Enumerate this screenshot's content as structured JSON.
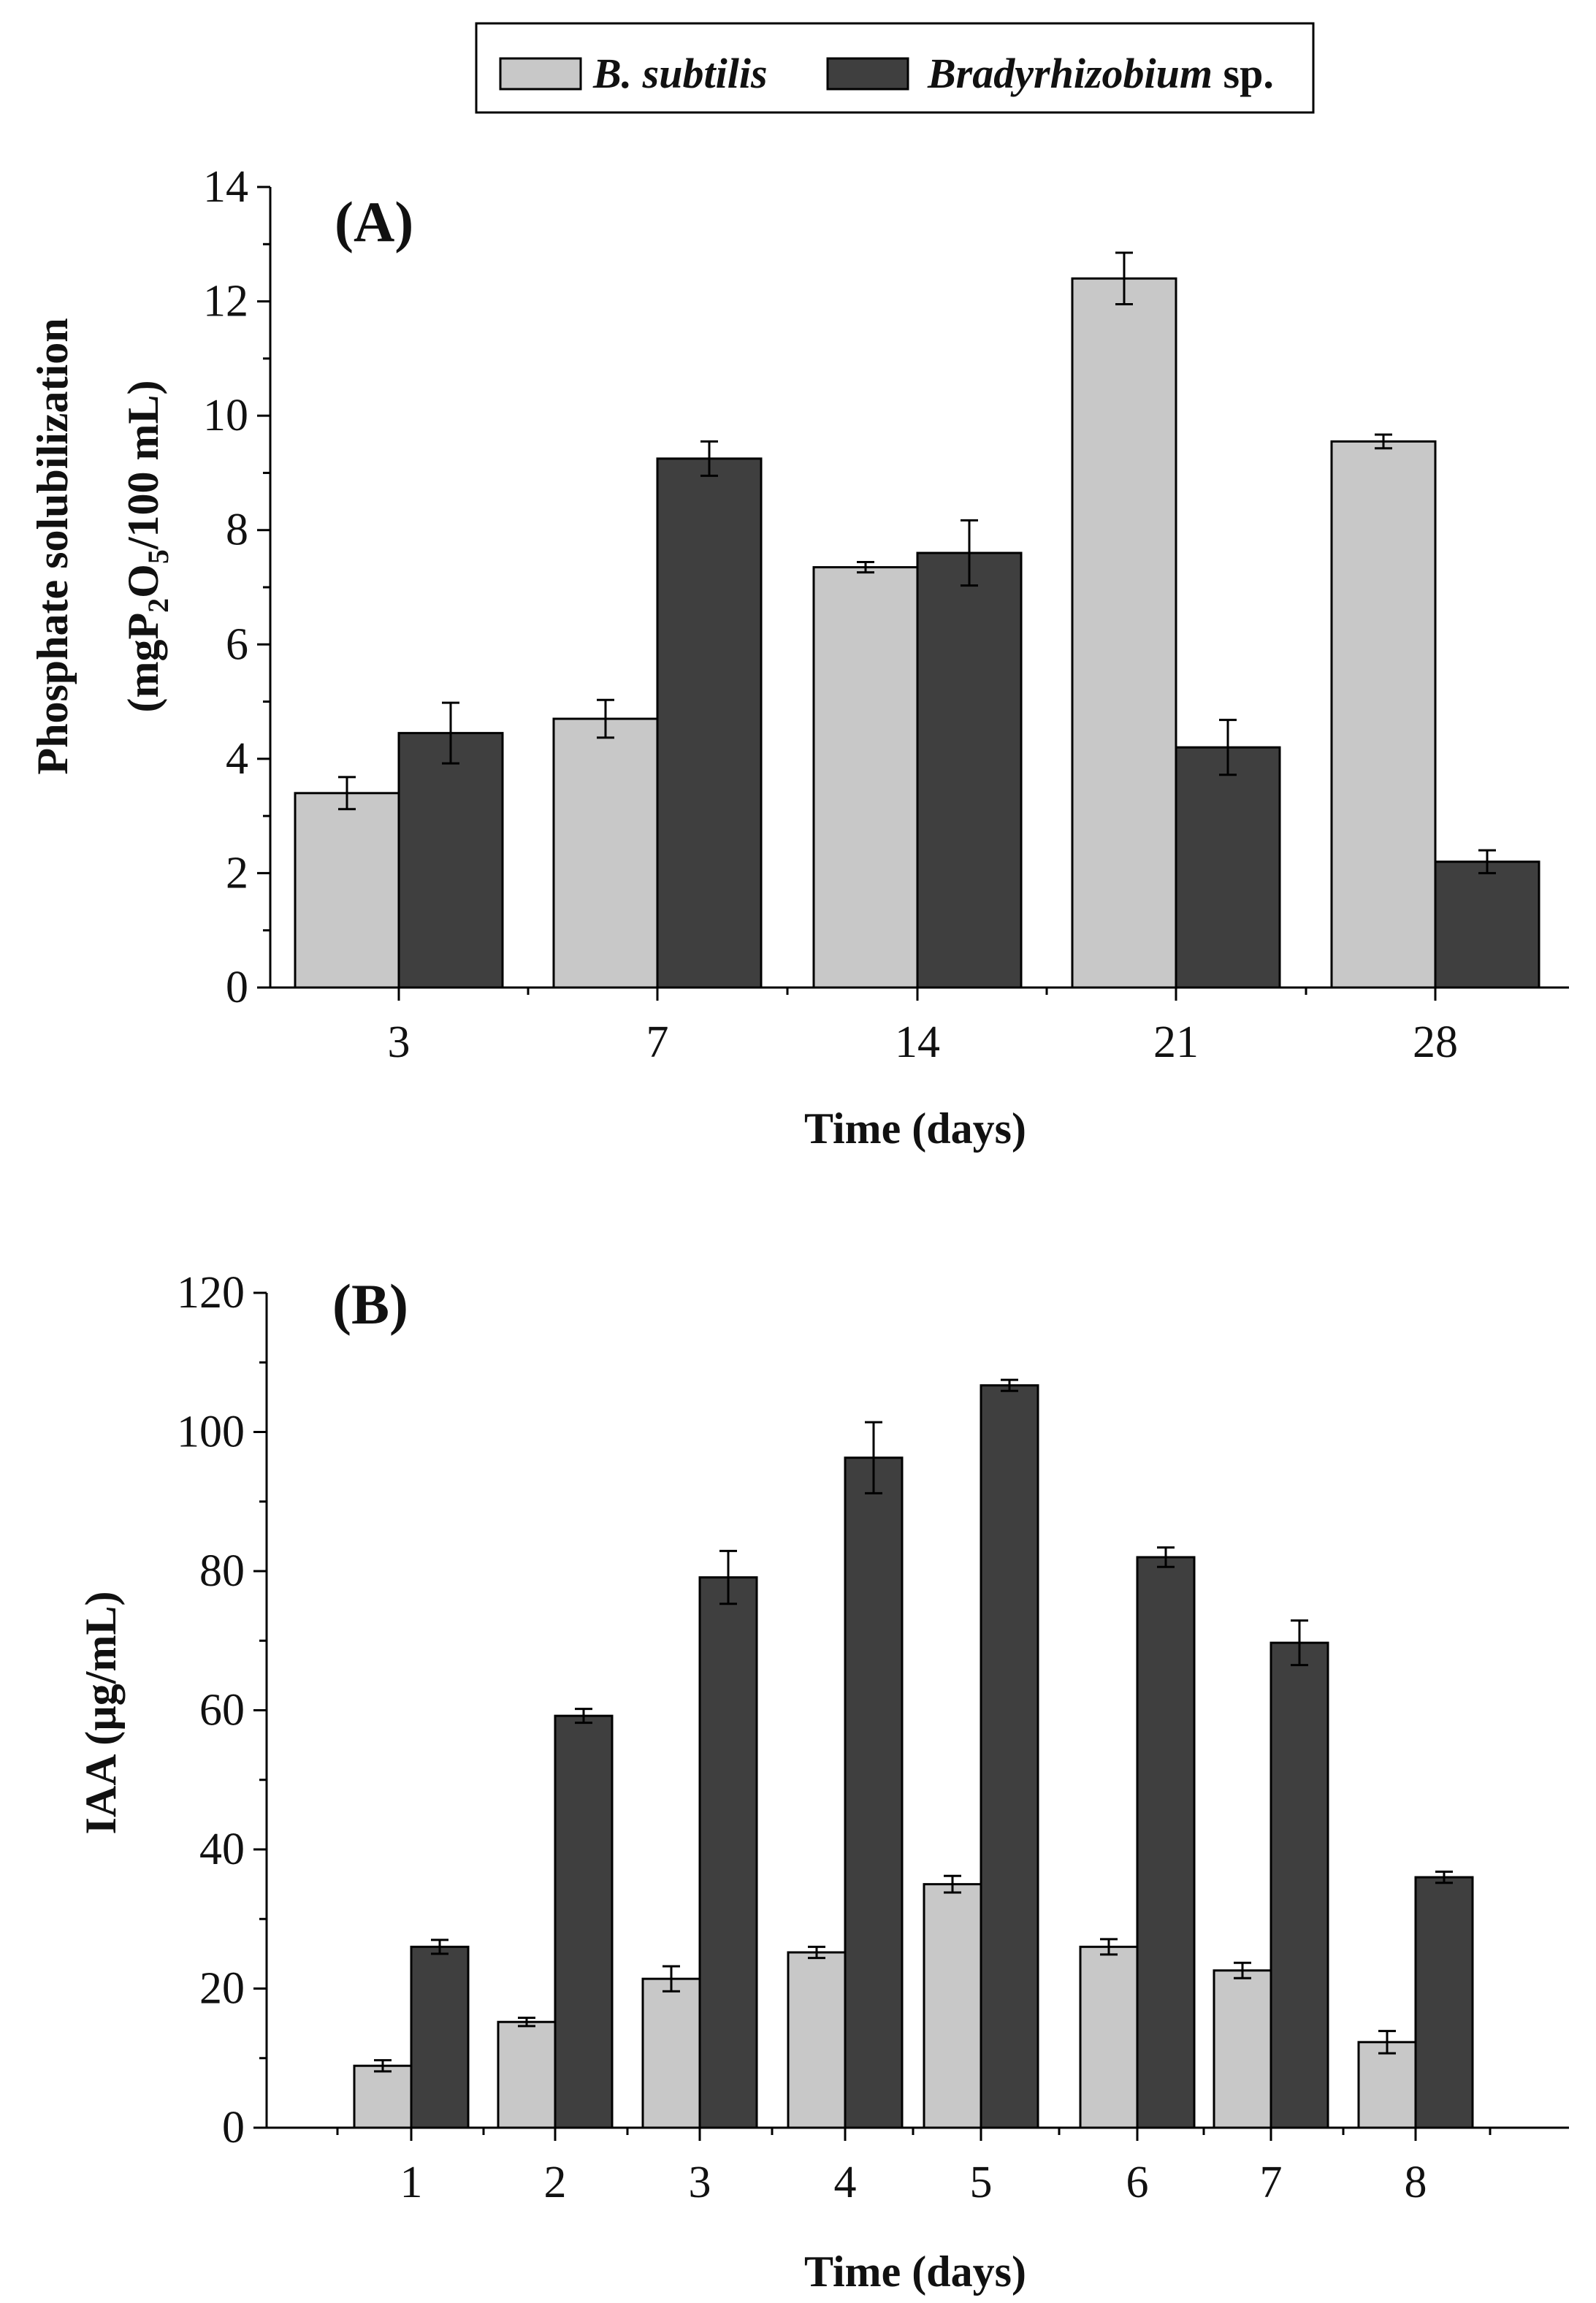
{
  "legend": {
    "series1_name": "B. subtilis",
    "series2_name_italic": "Bradyrhizobium",
    "series2_name_suffix": " sp."
  },
  "colors": {
    "series1": "#c8c8c8",
    "series2": "#3f3f3f"
  },
  "chart_data": [
    {
      "type": "bar",
      "panel_label": "(A)",
      "title": "",
      "xlabel": "Time (days)",
      "ylabel_line1": "Phosphate solubilization",
      "ylabel_line2_parts": [
        "(mgP",
        "2",
        "O",
        "5",
        "/100 mL)"
      ],
      "ylabel": "Phosphate solubilization (mgP2O5/100 mL)",
      "categories": [
        "3",
        "7",
        "14",
        "21",
        "28"
      ],
      "ylim": [
        0,
        14
      ],
      "yticks": [
        "0",
        "2",
        "4",
        "6",
        "8",
        "10",
        "12",
        "14"
      ],
      "series": [
        {
          "name": "B. subtilis",
          "values": [
            3.4,
            4.7,
            7.35,
            12.4,
            9.55
          ],
          "errors": [
            0.28,
            0.33,
            0.09,
            0.45,
            0.12
          ]
        },
        {
          "name": "Bradyrhizobium sp.",
          "values": [
            4.45,
            9.25,
            7.6,
            4.2,
            2.2
          ],
          "errors": [
            0.53,
            0.3,
            0.57,
            0.48,
            0.2
          ]
        }
      ]
    },
    {
      "type": "bar",
      "panel_label": "(B)",
      "title": "",
      "xlabel": "Time (days)",
      "ylabel": "IAA (µg/mL)",
      "categories": [
        "1",
        "2",
        "3",
        "4",
        "5",
        "6",
        "7",
        "8"
      ],
      "ylim": [
        0,
        120
      ],
      "yticks": [
        "0",
        "20",
        "40",
        "60",
        "80",
        "100",
        "120"
      ],
      "series": [
        {
          "name": "B. subtilis",
          "values": [
            8.9,
            15.2,
            21.4,
            25.2,
            35.0,
            26.0,
            22.6,
            12.3
          ],
          "errors": [
            0.8,
            0.6,
            1.8,
            0.8,
            1.2,
            1.1,
            1.1,
            1.6
          ]
        },
        {
          "name": "Bradyrhizobium sp.",
          "values": [
            26.0,
            59.2,
            79.1,
            96.3,
            106.7,
            82.0,
            69.7,
            36.0
          ],
          "errors": [
            1.0,
            1.0,
            3.8,
            5.1,
            0.8,
            1.4,
            3.2,
            0.8
          ]
        }
      ]
    }
  ]
}
